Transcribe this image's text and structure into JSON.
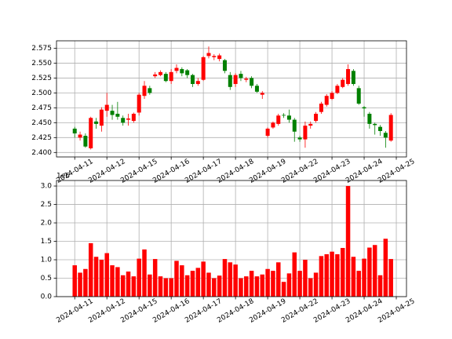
{
  "chart_data": [
    {
      "type": "candlestick",
      "x": [
        0,
        1,
        2,
        3,
        4,
        5,
        6,
        7,
        8,
        9,
        10,
        11,
        12,
        13,
        14,
        15,
        16,
        17,
        18,
        19,
        20,
        21,
        22,
        23,
        24,
        25,
        26,
        27,
        28,
        29,
        30,
        31,
        32,
        33,
        34,
        35,
        36,
        37,
        38,
        39,
        40,
        41,
        42,
        43,
        44,
        45,
        46,
        47,
        48,
        49,
        50,
        51,
        52,
        53,
        54,
        55,
        56,
        57,
        58,
        59
      ],
      "open": [
        2.44,
        2.425,
        2.428,
        2.407,
        2.452,
        2.445,
        2.47,
        2.47,
        2.465,
        2.458,
        2.455,
        2.453,
        2.467,
        2.495,
        2.508,
        2.528,
        2.53,
        2.532,
        2.52,
        2.537,
        2.54,
        2.538,
        2.53,
        2.515,
        2.522,
        2.562,
        2.56,
        2.557,
        2.555,
        2.53,
        2.515,
        2.532,
        2.522,
        2.525,
        2.512,
        2.497,
        2.428,
        2.442,
        2.448,
        2.463,
        2.462,
        2.455,
        2.425,
        2.422,
        2.445,
        2.453,
        2.468,
        2.48,
        2.49,
        2.5,
        2.51,
        2.515,
        2.537,
        2.508,
        2.476,
        2.465,
        2.448,
        2.443,
        2.433,
        2.42
      ],
      "high": [
        2.443,
        2.435,
        2.432,
        2.46,
        2.458,
        2.476,
        2.5,
        2.48,
        2.485,
        2.462,
        2.465,
        2.467,
        2.5,
        2.52,
        2.512,
        2.535,
        2.538,
        2.535,
        2.54,
        2.548,
        2.543,
        2.54,
        2.532,
        2.525,
        2.562,
        2.578,
        2.565,
        2.566,
        2.557,
        2.535,
        2.533,
        2.537,
        2.527,
        2.528,
        2.515,
        2.503,
        2.442,
        2.452,
        2.465,
        2.466,
        2.472,
        2.458,
        2.428,
        2.452,
        2.452,
        2.468,
        2.485,
        2.498,
        2.503,
        2.515,
        2.525,
        2.548,
        2.54,
        2.512,
        2.478,
        2.468,
        2.45,
        2.446,
        2.436,
        2.466
      ],
      "low": [
        2.425,
        2.42,
        2.408,
        2.405,
        2.44,
        2.435,
        2.46,
        2.455,
        2.455,
        2.445,
        2.445,
        2.45,
        2.462,
        2.49,
        2.497,
        2.525,
        2.528,
        2.518,
        2.515,
        2.533,
        2.528,
        2.525,
        2.51,
        2.512,
        2.52,
        2.558,
        2.555,
        2.553,
        2.533,
        2.505,
        2.51,
        2.52,
        2.518,
        2.508,
        2.5,
        2.49,
        2.425,
        2.44,
        2.445,
        2.458,
        2.45,
        2.418,
        2.418,
        2.408,
        2.44,
        2.45,
        2.465,
        2.477,
        2.488,
        2.498,
        2.508,
        2.512,
        2.512,
        2.48,
        2.46,
        2.44,
        2.43,
        2.428,
        2.408,
        2.418
      ],
      "close": [
        2.432,
        2.43,
        2.41,
        2.458,
        2.448,
        2.472,
        2.48,
        2.463,
        2.46,
        2.45,
        2.457,
        2.465,
        2.497,
        2.512,
        2.5,
        2.531,
        2.535,
        2.52,
        2.535,
        2.542,
        2.533,
        2.53,
        2.515,
        2.52,
        2.56,
        2.567,
        2.562,
        2.563,
        2.537,
        2.51,
        2.53,
        2.525,
        2.524,
        2.512,
        2.502,
        2.5,
        2.44,
        2.45,
        2.462,
        2.462,
        2.455,
        2.435,
        2.422,
        2.445,
        2.448,
        2.465,
        2.482,
        2.495,
        2.5,
        2.512,
        2.522,
        2.54,
        2.515,
        2.482,
        2.474,
        2.448,
        2.446,
        2.436,
        2.425,
        2.463
      ],
      "up_color": "#ff0000",
      "down_color": "#008000",
      "xlim": [
        -3.4,
        61.9
      ],
      "xticks": [
        {
          "value": 0,
          "label": "2024-04-11"
        },
        {
          "value": 6,
          "label": "2024-04-12"
        },
        {
          "value": 12,
          "label": "2024-04-15"
        },
        {
          "value": 18,
          "label": "2024-04-16"
        },
        {
          "value": 24,
          "label": "2024-04-17"
        },
        {
          "value": 30,
          "label": "2024-04-18"
        },
        {
          "value": 36,
          "label": "2024-04-19"
        },
        {
          "value": 42,
          "label": "2024-04-22"
        },
        {
          "value": 48,
          "label": "2024-04-23"
        },
        {
          "value": 54,
          "label": "2024-04-24"
        },
        {
          "value": 60,
          "label": "2024-04-25"
        }
      ],
      "ylim": [
        2.3925,
        2.5875
      ],
      "yticks": [
        {
          "value": 2.4,
          "label": "2.400"
        },
        {
          "value": 2.425,
          "label": "2.425"
        },
        {
          "value": 2.45,
          "label": "2.450"
        },
        {
          "value": 2.475,
          "label": "2.475"
        },
        {
          "value": 2.5,
          "label": "2.500"
        },
        {
          "value": 2.525,
          "label": "2.525"
        },
        {
          "value": 2.55,
          "label": "2.550"
        },
        {
          "value": 2.575,
          "label": "2.575"
        }
      ],
      "grid": true
    },
    {
      "type": "bar",
      "x": [
        0,
        1,
        2,
        3,
        4,
        5,
        6,
        7,
        8,
        9,
        10,
        11,
        12,
        13,
        14,
        15,
        16,
        17,
        18,
        19,
        20,
        21,
        22,
        23,
        24,
        25,
        26,
        27,
        28,
        29,
        30,
        31,
        32,
        33,
        34,
        35,
        36,
        37,
        38,
        39,
        40,
        41,
        42,
        43,
        44,
        45,
        46,
        47,
        48,
        49,
        50,
        51,
        52,
        53,
        54,
        55,
        56,
        57,
        58,
        59
      ],
      "values": [
        0.85,
        0.65,
        0.75,
        1.45,
        1.08,
        1.0,
        1.18,
        0.85,
        0.8,
        0.58,
        0.68,
        0.55,
        1.03,
        1.28,
        0.6,
        1.02,
        0.55,
        0.5,
        0.5,
        0.97,
        0.85,
        0.58,
        0.7,
        0.78,
        0.95,
        0.65,
        0.5,
        0.57,
        1.02,
        0.93,
        0.87,
        0.5,
        0.55,
        0.7,
        0.55,
        0.6,
        0.75,
        0.7,
        0.93,
        0.4,
        0.63,
        1.2,
        0.7,
        1.0,
        0.5,
        0.65,
        1.1,
        1.15,
        1.22,
        1.15,
        1.32,
        3.0,
        1.08,
        0.7,
        1.03,
        1.33,
        1.4,
        0.58,
        1.57,
        1.02
      ],
      "color": "#ff0000",
      "offset_text": "1e6",
      "xlim": [
        -3.4,
        61.9
      ],
      "xticks": [
        {
          "value": 0,
          "label": "2024-04-11"
        },
        {
          "value": 6,
          "label": "2024-04-12"
        },
        {
          "value": 12,
          "label": "2024-04-15"
        },
        {
          "value": 18,
          "label": "2024-04-16"
        },
        {
          "value": 24,
          "label": "2024-04-17"
        },
        {
          "value": 30,
          "label": "2024-04-18"
        },
        {
          "value": 36,
          "label": "2024-04-19"
        },
        {
          "value": 42,
          "label": "2024-04-22"
        },
        {
          "value": 48,
          "label": "2024-04-23"
        },
        {
          "value": 54,
          "label": "2024-04-24"
        },
        {
          "value": 60,
          "label": "2024-04-25"
        }
      ],
      "ylim": [
        0,
        3.15
      ],
      "yticks": [
        {
          "value": 0,
          "label": "0.0"
        },
        {
          "value": 0.5,
          "label": "0.5"
        },
        {
          "value": 1.0,
          "label": "1.0"
        },
        {
          "value": 1.5,
          "label": "1.5"
        },
        {
          "value": 2.0,
          "label": "2.0"
        },
        {
          "value": 2.5,
          "label": "2.5"
        },
        {
          "value": 3.0,
          "label": "3.0"
        }
      ],
      "grid": true
    }
  ]
}
